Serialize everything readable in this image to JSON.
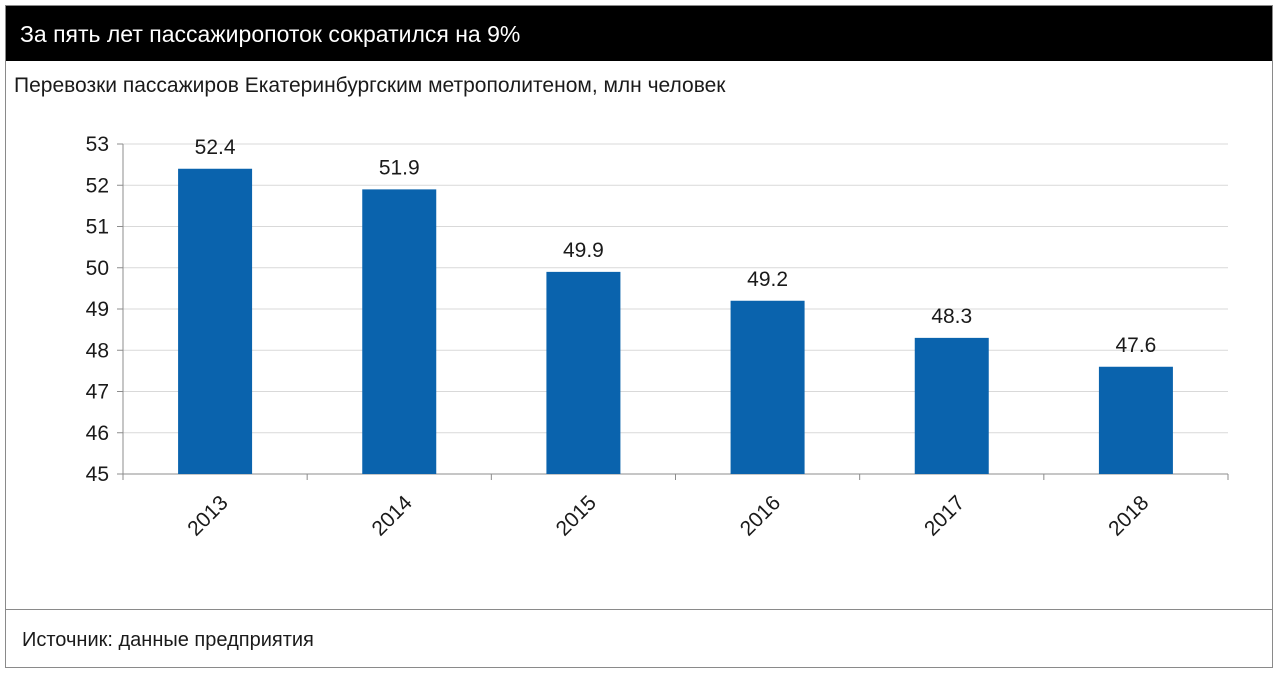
{
  "header": {
    "title": "За пять лет пассажиропоток сократился на 9%",
    "subtitle": "Перевозки пассажиров Екатеринбургским метрополитеном, млн человек"
  },
  "footer": {
    "source": "Источник: данные предприятия"
  },
  "colors": {
    "bar": "#0a63ad",
    "header_background": "#000000",
    "header_text": "#ffffff",
    "grid": "#d9d9d9",
    "axis": "#8c8c8c"
  },
  "chart_data": {
    "type": "bar",
    "categories": [
      "2013",
      "2014",
      "2015",
      "2016",
      "2017",
      "2018"
    ],
    "values": [
      52.4,
      51.9,
      49.9,
      49.2,
      48.3,
      47.6
    ],
    "value_labels": [
      "52.4",
      "51.9",
      "49.9",
      "49.2",
      "48.3",
      "47.6"
    ],
    "title": "За пять лет пассажиропоток сократился на 9%",
    "subtitle": "Перевозки пассажиров Екатеринбургским метрополитеном, млн человек",
    "xlabel": "",
    "ylabel": "",
    "ylim": [
      45,
      53
    ],
    "yticks": [
      "45",
      "46",
      "47",
      "48",
      "49",
      "50",
      "51",
      "52",
      "53"
    ],
    "grid": true,
    "legend": "none"
  }
}
